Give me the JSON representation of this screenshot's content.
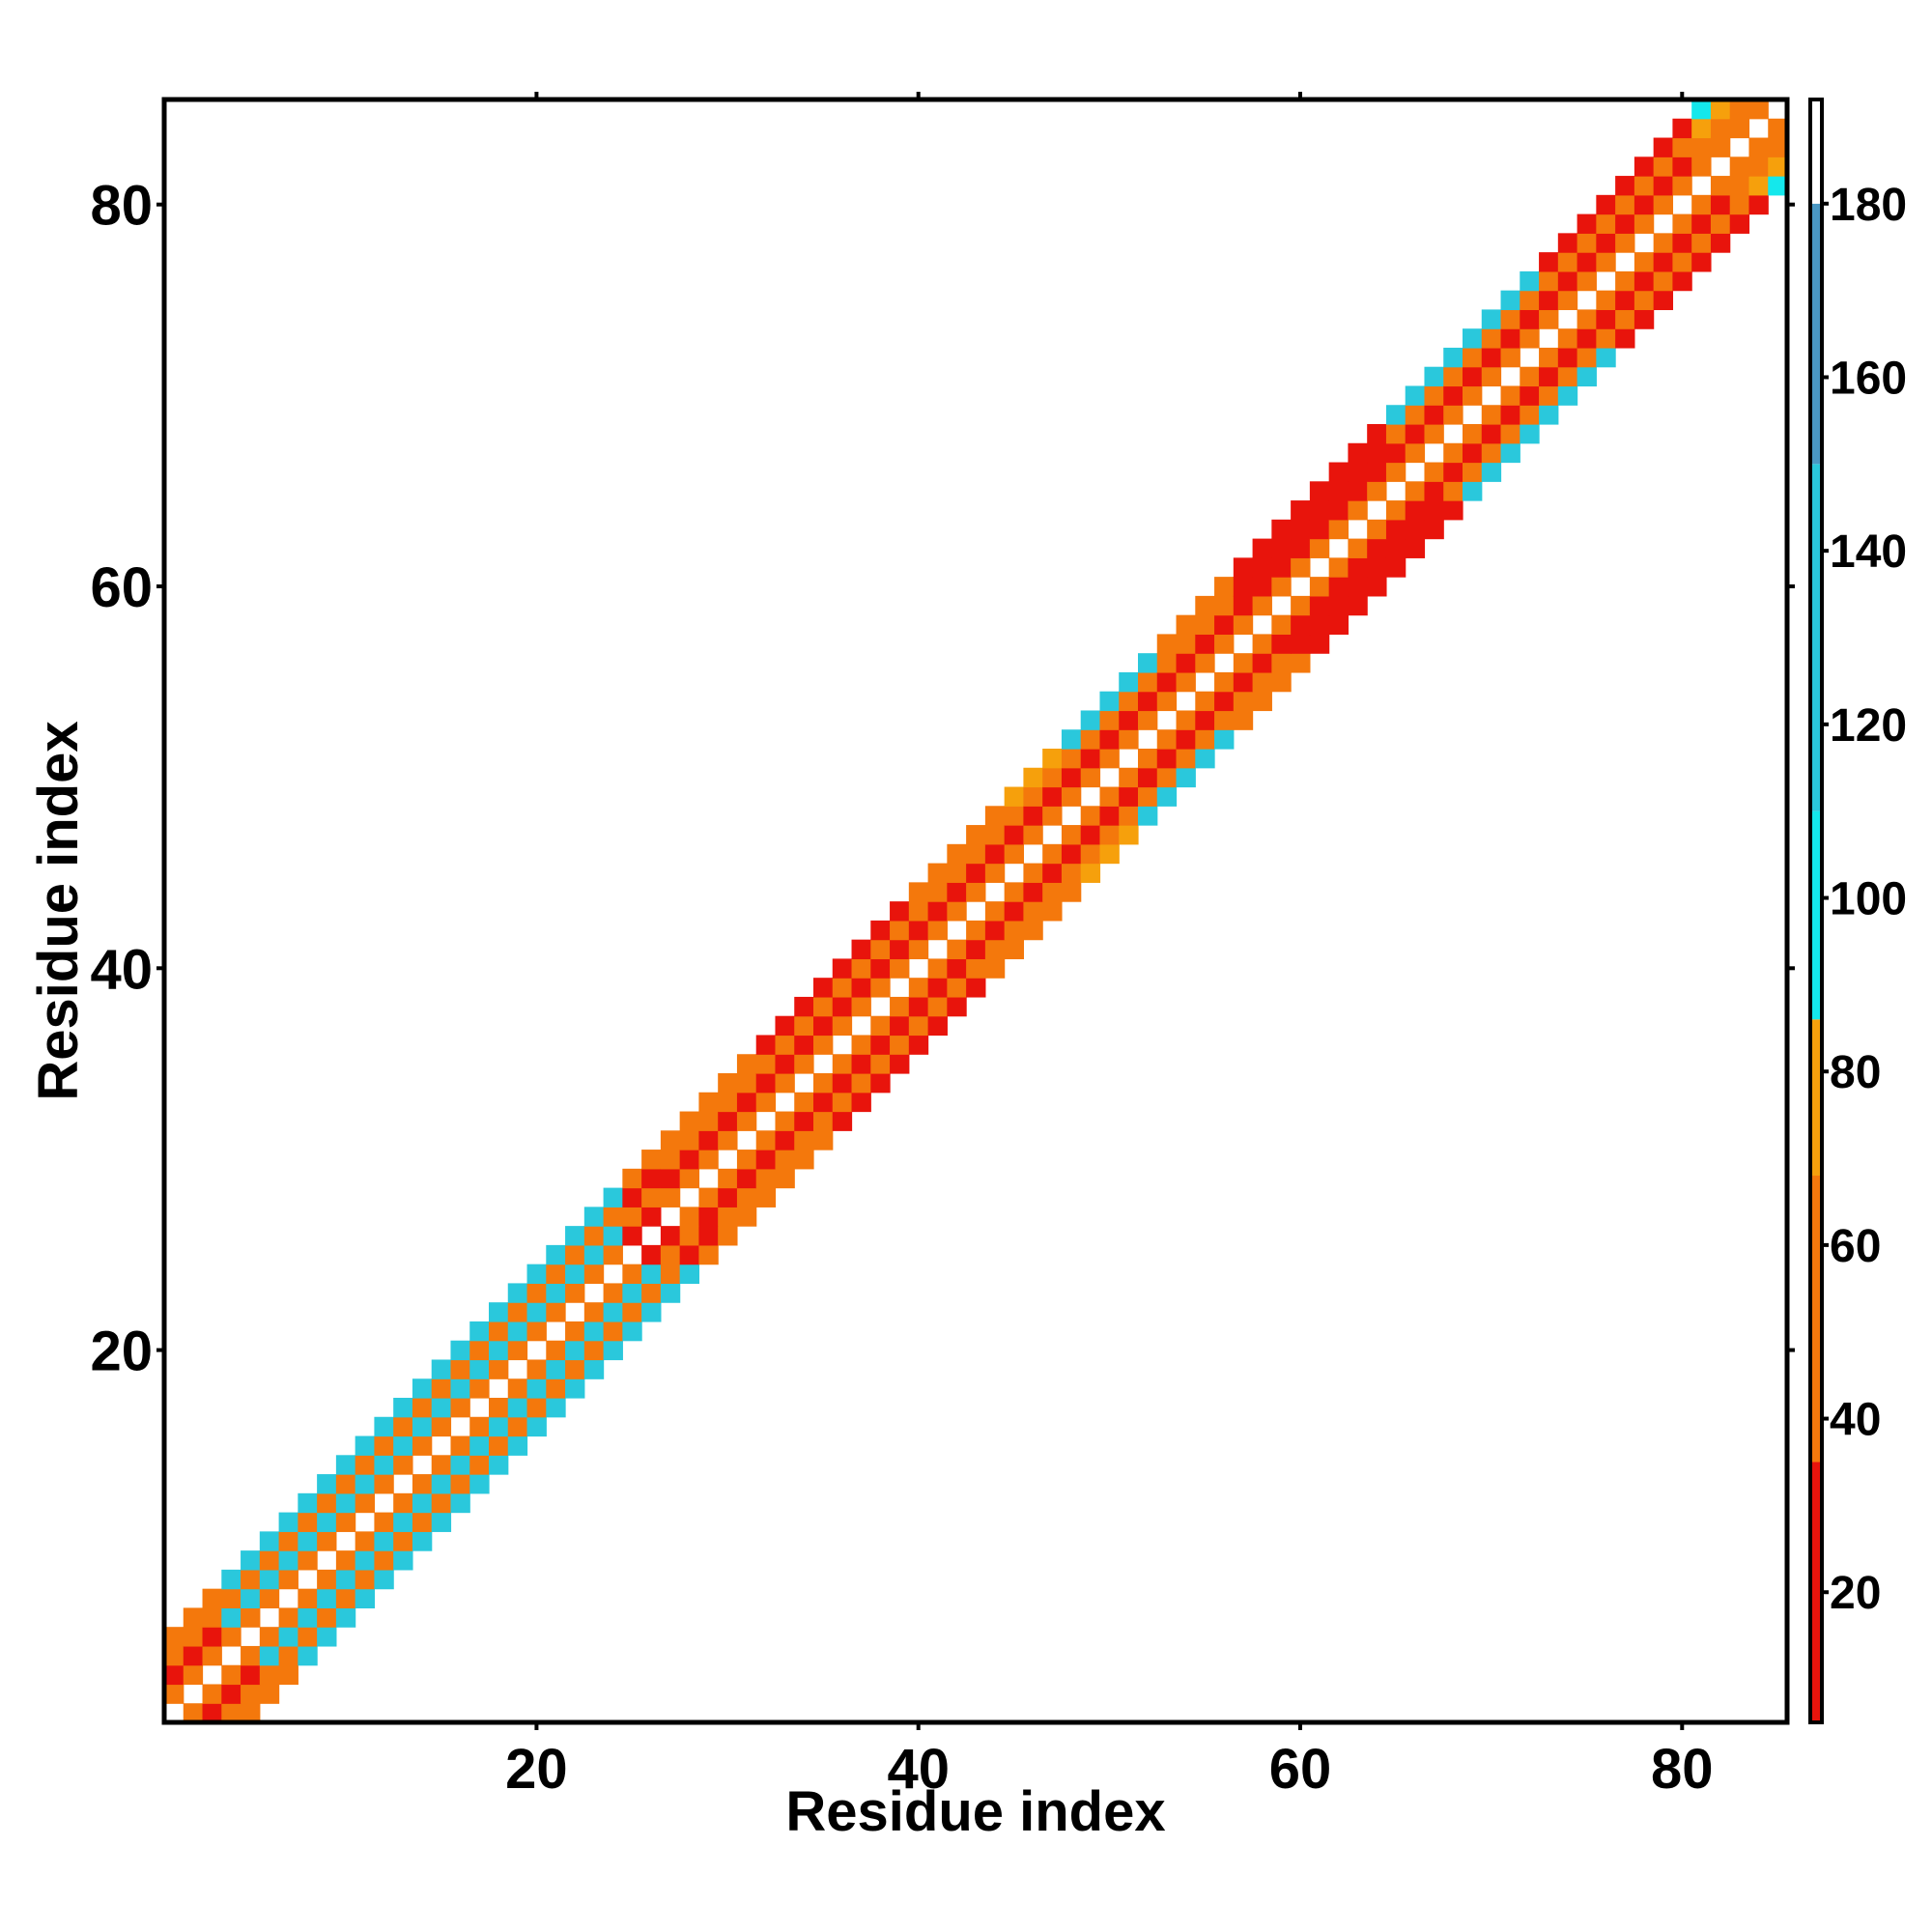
{
  "chart_data": {
    "type": "heatmap",
    "title": "",
    "xlabel": "Residue index",
    "ylabel": "Residue index",
    "xlim": [
      0.5,
      85.5
    ],
    "ylim": [
      0.5,
      85.5
    ],
    "x_ticks": [
      20,
      40,
      60,
      80
    ],
    "y_ticks": [
      20,
      40,
      60,
      80
    ],
    "x_tick_labels": [
      "20",
      "40",
      "60",
      "80"
    ],
    "y_tick_labels": [
      "20",
      "40",
      "60",
      "80"
    ],
    "colorbar": {
      "range": [
        5,
        192
      ],
      "ticks": [
        20,
        40,
        60,
        80,
        100,
        120,
        140,
        160,
        180
      ],
      "tick_labels": [
        "20",
        "40",
        "60",
        "80",
        "100",
        "120",
        "140",
        "160",
        "180"
      ],
      "colors": [
        {
          "from": 5,
          "to": 35,
          "color": "#e8140c"
        },
        {
          "from": 35,
          "to": 68,
          "color": "#f4780c"
        },
        {
          "from": 68,
          "to": 86,
          "color": "#f6a00c"
        },
        {
          "from": 86,
          "to": 110,
          "color": "#14e8ec"
        },
        {
          "from": 110,
          "to": 150,
          "color": "#2ac8dc"
        },
        {
          "from": 150,
          "to": 180,
          "color": "#4a98c4"
        },
        {
          "from": 180,
          "to": 192,
          "color": "#ffffff"
        }
      ]
    },
    "grid": false,
    "diagonal_band": {
      "description_of_values": "values for residue pairs with |i-j| in 1..4; diagonal blank",
      "segments": [
        {
          "from": 1,
          "to": 3,
          "d1": 45,
          "d2": 20,
          "d3": 48,
          "d4": 45
        },
        {
          "from": 4,
          "to": 24,
          "d1": 48,
          "d2": 118,
          "d3": 48,
          "d4": 118
        },
        {
          "from": 25,
          "to": 26,
          "d1": 28,
          "d2": 48,
          "d3": 28,
          "d4": 48
        },
        {
          "from": 27,
          "to": 31,
          "d1": 48,
          "d2": 20,
          "d3": 48,
          "d4": 65
        },
        {
          "from": 32,
          "to": 39,
          "d1": 48,
          "d2": 20,
          "d3": 48,
          "d4": 28
        },
        {
          "from": 40,
          "to": 44,
          "d1": 48,
          "d2": 20,
          "d3": 48,
          "d4": 48
        },
        {
          "from": 45,
          "to": 47,
          "d1": 48,
          "d2": 20,
          "d3": 48,
          "d4": 70
        },
        {
          "from": 48,
          "to": 52,
          "d1": 48,
          "d2": 20,
          "d3": 48,
          "d4": 118
        },
        {
          "from": 53,
          "to": 56,
          "d1": 48,
          "d2": 20,
          "d3": 48,
          "d4": 48
        },
        {
          "from": 57,
          "to": 64,
          "d1": 48,
          "d2": 20,
          "d3": 28,
          "d4": 20
        },
        {
          "from": 65,
          "to": 72,
          "d1": 48,
          "d2": 20,
          "d3": 48,
          "d4": 118
        },
        {
          "from": 73,
          "to": 80,
          "d1": 48,
          "d2": 20,
          "d3": 48,
          "d4": 20
        },
        {
          "from": 81,
          "to": 85,
          "d1": 48,
          "d2": 48,
          "d3": 70,
          "d4": 105
        }
      ]
    }
  }
}
